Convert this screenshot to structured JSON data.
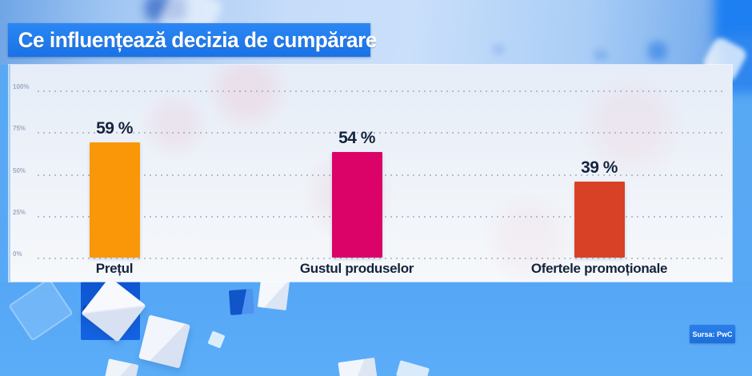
{
  "title": "Ce influențează decizia de cumpărare",
  "source_badge": "Sursa: PwC",
  "chart_data": {
    "type": "bar",
    "title": "Ce influențează decizia de cumpărare",
    "categories": [
      "Prețul",
      "Gustul produselor",
      "Ofertele promoționale"
    ],
    "values": [
      59,
      54,
      39
    ],
    "value_labels": [
      "59 %",
      "54 %",
      "39 %"
    ],
    "unit": "%",
    "y_axis_ticks": [
      "100%",
      "75%",
      "50%",
      "25%",
      "0%"
    ],
    "ylim": [
      0,
      100
    ],
    "grid": "dotted-horizontal",
    "legend": "none",
    "bar_colors": [
      "#F99708",
      "#DB0367",
      "#D94126"
    ],
    "source": "Sursa: PwC"
  },
  "colors": {
    "banner_blue": "#1E7CEC",
    "background_blue": "#57A8F5",
    "panel_light": "#EFF3F9",
    "label_navy": "#13233C",
    "badge_blue": "#1B6FDD"
  }
}
